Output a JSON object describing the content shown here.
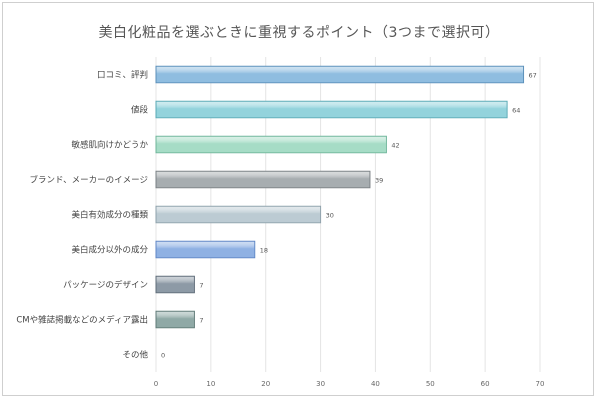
{
  "chart_data": {
    "type": "bar",
    "orientation": "horizontal",
    "title": "美白化粧品を選ぶときに重視するポイント（3つまで選択可）",
    "xlabel": "",
    "ylabel": "",
    "xlim": [
      0,
      70
    ],
    "x_ticks": [
      0,
      10,
      20,
      30,
      40,
      50,
      60,
      70
    ],
    "grid": "vertical",
    "legend": "none",
    "categories": [
      "口コミ、評判",
      "値段",
      "敏感肌向けかどうか",
      "ブランド、メーカーのイメージ",
      "美白有効成分の種類",
      "美白成分以外の成分",
      "パッケージのデザイン",
      "CMや雑誌掲載などのメディア露出",
      "その他"
    ],
    "values": [
      67,
      64,
      42,
      39,
      30,
      18,
      7,
      7,
      0
    ],
    "bar_colors": [
      {
        "fill": "#8fbde0",
        "stroke": "#5b8fb9"
      },
      {
        "fill": "#93d3dc",
        "stroke": "#5aa9b5"
      },
      {
        "fill": "#a6dcc6",
        "stroke": "#6fb59a"
      },
      {
        "fill": "#a7adb0",
        "stroke": "#7a8084"
      },
      {
        "fill": "#bccbd3",
        "stroke": "#8ea1ab"
      },
      {
        "fill": "#8fb1e3",
        "stroke": "#5f86c4"
      },
      {
        "fill": "#8d9aa6",
        "stroke": "#5f6c78"
      },
      {
        "fill": "#8fa9a6",
        "stroke": "#5f7a77"
      },
      {
        "fill": "#b8c4cc",
        "stroke": "#8a97a0"
      }
    ]
  }
}
